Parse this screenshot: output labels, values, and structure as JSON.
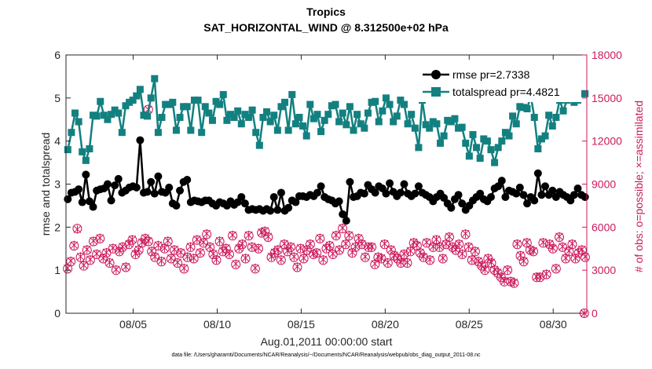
{
  "chart_data": {
    "type": "line",
    "title": "Tropics",
    "subtitle": "SAT_HORIZONTAL_WIND @ 8.312500e+02 hPa",
    "xlabel": "Aug.01,2011 00:00:00 start",
    "ylabel_left": "rmse and totalspread",
    "ylabel_right": "# of obs: o=possible; ×=assimilated",
    "x_range": [
      1.0,
      32.0
    ],
    "x_ticks": [
      {
        "x": 5,
        "label": "08/05"
      },
      {
        "x": 10,
        "label": "08/10"
      },
      {
        "x": 15,
        "label": "08/15"
      },
      {
        "x": 20,
        "label": "08/20"
      },
      {
        "x": 25,
        "label": "08/25"
      },
      {
        "x": 30,
        "label": "08/30"
      }
    ],
    "ylim_left": [
      0,
      6
    ],
    "yticks_left": [
      "0",
      "1",
      "2",
      "3",
      "4",
      "5",
      "6"
    ],
    "ylim_right": [
      0,
      18000
    ],
    "yticks_right": [
      "0",
      "3000",
      "6000",
      "9000",
      "12000",
      "15000",
      "18000"
    ],
    "legend_position": "top-right",
    "series": [
      {
        "name": "rmse pr=2.7338",
        "axis": "left",
        "color": "#000000",
        "marker": "circle",
        "values": [
          2.65,
          2.8,
          2.82,
          2.88,
          2.58,
          3.22,
          2.6,
          2.47,
          2.85,
          2.88,
          2.9,
          3.0,
          2.62,
          2.97,
          3.12,
          2.8,
          2.85,
          2.92,
          2.95,
          2.92,
          4.02,
          2.8,
          2.82,
          3.05,
          2.78,
          3.18,
          2.82,
          2.8,
          2.92,
          2.55,
          2.5,
          2.85,
          3.05,
          3.1,
          2.58,
          2.62,
          2.6,
          2.58,
          2.62,
          2.62,
          2.55,
          2.5,
          2.58,
          2.55,
          2.5,
          2.6,
          2.52,
          2.58,
          2.7,
          2.55,
          2.4,
          2.42,
          2.4,
          2.42,
          2.38,
          2.42,
          2.38,
          2.7,
          2.4,
          2.8,
          2.38,
          2.45,
          2.62,
          2.58,
          2.72,
          2.72,
          2.7,
          2.75,
          2.72,
          2.8,
          2.95,
          2.7,
          2.65,
          2.62,
          2.55,
          2.6,
          2.3,
          2.15,
          3.05,
          2.7,
          2.72,
          2.8,
          2.78,
          2.98,
          2.88,
          2.8,
          2.95,
          2.9,
          2.78,
          3.02,
          2.82,
          2.72,
          2.8,
          3.0,
          2.78,
          2.72,
          2.78,
          2.95,
          2.8,
          2.75,
          2.7,
          2.6,
          2.7,
          2.78,
          2.68,
          2.55,
          2.45,
          2.65,
          2.75,
          2.55,
          2.4,
          2.5,
          2.62,
          2.7,
          2.78,
          2.65,
          2.6,
          2.7,
          2.9,
          2.95,
          3.08,
          2.7,
          2.85,
          2.82,
          2.78,
          2.92,
          2.75,
          2.55,
          2.7,
          2.62,
          3.25,
          2.75,
          2.95,
          2.75,
          2.85,
          2.7,
          2.82,
          2.75,
          2.7,
          2.62,
          2.75,
          2.9,
          2.75,
          2.7
        ]
      },
      {
        "name": "totalspread pr=4.4821",
        "axis": "left",
        "color": "#138080",
        "marker": "square",
        "values": [
          3.8,
          4.2,
          4.65,
          4.45,
          3.75,
          3.55,
          3.82,
          4.6,
          4.58,
          4.92,
          4.6,
          4.5,
          4.62,
          4.72,
          4.65,
          4.2,
          4.82,
          4.9,
          4.95,
          5.05,
          5.2,
          4.6,
          4.58,
          5.0,
          5.45,
          4.2,
          4.55,
          4.85,
          4.85,
          4.9,
          4.25,
          4.55,
          4.8,
          4.8,
          4.25,
          4.95,
          4.95,
          4.2,
          4.8,
          4.65,
          4.48,
          4.92,
          4.85,
          5.08,
          4.48,
          4.62,
          4.55,
          4.7,
          4.4,
          4.62,
          4.55,
          4.72,
          4.2,
          3.9,
          4.55,
          4.68,
          4.45,
          4.6,
          4.25,
          4.8,
          4.9,
          4.25,
          5.08,
          4.4,
          4.55,
          4.35,
          4.12,
          4.85,
          4.52,
          4.62,
          4.22,
          4.48,
          4.62,
          4.82,
          4.85,
          4.45,
          4.65,
          4.38,
          4.8,
          4.25,
          4.62,
          4.4,
          4.3,
          4.65,
          4.9,
          4.92,
          4.45,
          4.7,
          5.0,
          4.85,
          4.45,
          4.58,
          4.95,
          4.85,
          4.4,
          4.62,
          4.3,
          3.85,
          4.95,
          4.38,
          4.3,
          4.45,
          4.4,
          3.95,
          4.12,
          4.48,
          4.45,
          4.52,
          4.3,
          4.32,
          3.95,
          3.65,
          4.15,
          3.85,
          3.6,
          4.05,
          4.0,
          3.8,
          3.5,
          3.85,
          4.0,
          4.2,
          4.12,
          4.58,
          4.4,
          4.8,
          4.78,
          4.75,
          5.05,
          4.55,
          3.82,
          4.05,
          4.12,
          4.6,
          4.35,
          4.55,
          4.95,
          4.7,
          4.95,
          5.05,
          4.9,
          4.95,
          5.1,
          5.1
        ]
      },
      {
        "name": "possible",
        "axis": "right",
        "color": "#cc1a5c",
        "marker": "circle-open",
        "values": [
          3100,
          3600,
          4700,
          5900,
          3900,
          3300,
          4400,
          3700,
          5000,
          4100,
          5200,
          3800,
          4200,
          3500,
          4500,
          3000,
          4300,
          4600,
          3200,
          4800,
          5100,
          4100,
          4400,
          4900,
          5200,
          5000,
          4300,
          3900,
          4700,
          3600,
          4500,
          5000,
          3800,
          4400,
          3500,
          4200,
          3100,
          3900,
          4600,
          3800,
          5100,
          4200,
          4900,
          5500,
          4600,
          4100,
          3700,
          5000,
          4300,
          4500,
          4100,
          5400,
          3400,
          4500,
          4800,
          3800,
          5400,
          4600,
          3100,
          4500,
          5600,
          5700,
          5300,
          3900,
          4200,
          4400,
          3700,
          4800,
          4300,
          4600,
          3900,
          3200,
          4500,
          3800,
          4400,
          4800,
          4100,
          4200,
          5200,
          3700,
          4500,
          4700,
          4100,
          5400,
          4400,
          5900,
          4800,
          5400,
          4200,
          4600,
          5200,
          4800,
          3900,
          4600,
          4600,
          3400,
          3900,
          3800,
          4800,
          3500,
          4400,
          4000,
          3800,
          3500,
          4100,
          3500,
          4300,
          4900,
          4700,
          4200,
          3900,
          4900,
          3700,
          4600,
          5100,
          4600,
          3800,
          4800,
          5300,
          4600,
          4400,
          4800,
          4100,
          5500,
          4600,
          3700,
          4300,
          3600,
          3300,
          3000,
          3800,
          3500,
          3000,
          2800,
          2500,
          2200,
          3000,
          2200,
          2100,
          4800,
          4000,
          3600,
          4900,
          4400,
          4300,
          2500,
          2500,
          4900,
          2700,
          4800,
          4500,
          3100,
          5300,
          4600,
          3800,
          4300,
          4800,
          3800,
          4200,
          4400,
          3900
        ]
      },
      {
        "name": "assimilated",
        "axis": "right",
        "color": "#cc1a5c",
        "marker": "x",
        "values": [
          3150,
          3650,
          4750,
          5850,
          3950,
          3350,
          4450,
          3750,
          5050,
          4150,
          5250,
          3850,
          4250,
          3550,
          4550,
          3050,
          4350,
          4650,
          3250,
          4850,
          5150,
          4150,
          4450,
          4950,
          5250,
          5050,
          4350,
          3950,
          4750,
          3650,
          4550,
          5050,
          3850,
          4450,
          3550,
          4250,
          3150,
          3950,
          4650,
          3850,
          5150,
          4250,
          4950,
          5550,
          4650,
          4150,
          3750,
          5050,
          4350,
          4550,
          4150,
          5450,
          3450,
          4550,
          4850,
          3850,
          5450,
          4650,
          3150,
          4550,
          5650,
          5750,
          5350,
          3950,
          4250,
          4450,
          3750,
          4850,
          4350,
          4650,
          3950,
          3250,
          4550,
          3850,
          4450,
          4850,
          4150,
          4250,
          5250,
          3750,
          4550,
          4750,
          4150,
          5450,
          4450,
          5950,
          4850,
          5450,
          4250,
          4650,
          5250,
          4850,
          3950,
          4650,
          4650,
          3450,
          3950,
          3850,
          4850,
          3550,
          4450,
          4050,
          3850,
          3550,
          4150,
          3550,
          4350,
          4950,
          4750,
          4250,
          3950,
          4950,
          3750,
          4650,
          5150,
          4650,
          3850,
          4850,
          5350,
          4650,
          4450,
          4850,
          4150,
          5550,
          4650,
          3750,
          4350,
          3650,
          3350,
          3050,
          3850,
          3550,
          3050,
          2850,
          2550,
          2250,
          3050,
          2250,
          2150,
          4850,
          4050,
          3650,
          4950,
          4450,
          4350,
          2550,
          2550,
          4950,
          2750,
          4850,
          4550,
          3150,
          5350,
          4650,
          3850,
          4350,
          4850,
          3850,
          4250,
          4450,
          3950
        ]
      }
    ],
    "extra_points": [
      {
        "series": "possible",
        "x": 5.9,
        "y": 14200
      },
      {
        "series": "possible",
        "x": 31.85,
        "y": 0
      }
    ]
  },
  "footer": "data file: /Users/gharamti/Documents/NCAR/Reanalysis/~/Documents/NCAR/Reanalysis/webpub/obs_diag_output_2011-08.nc"
}
